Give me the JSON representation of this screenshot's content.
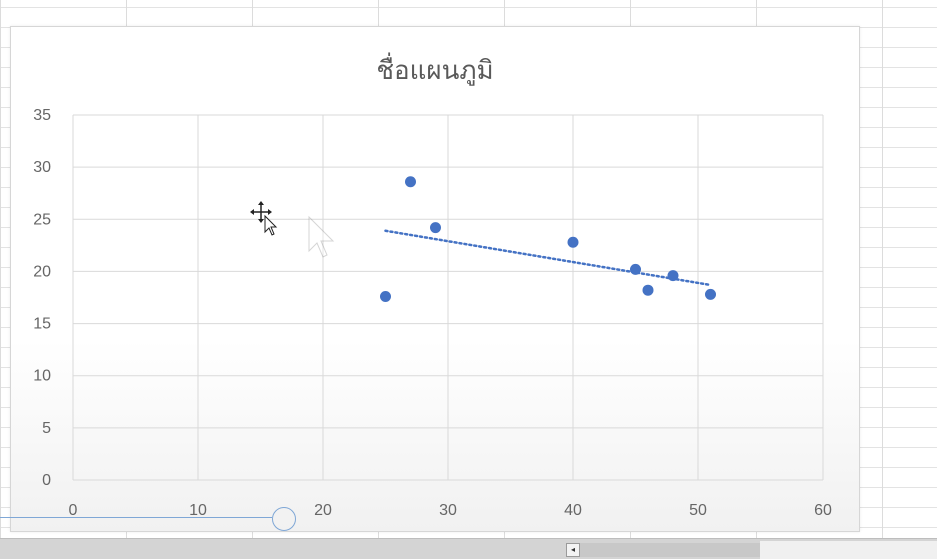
{
  "chart_data": {
    "type": "scatter",
    "title": "ชื่อแผนภูมิ",
    "xlabel": "",
    "ylabel": "",
    "xlim": [
      0,
      60
    ],
    "ylim": [
      0,
      35
    ],
    "x_ticks": [
      "0",
      "10",
      "20",
      "30",
      "40",
      "50",
      "60"
    ],
    "y_ticks": [
      "0",
      "5",
      "10",
      "15",
      "20",
      "25",
      "30",
      "35"
    ],
    "grid": true,
    "legend": "none",
    "series": [
      {
        "x": [
          25,
          27,
          29,
          40,
          45,
          46,
          48,
          51
        ],
        "y": [
          17.6,
          28.6,
          24.2,
          22.8,
          20.2,
          18.2,
          19.6,
          17.8
        ],
        "color": "#4472c4"
      }
    ],
    "trendline": {
      "type": "linear",
      "x_range": [
        25,
        51
      ],
      "y_range": [
        23.9,
        18.7
      ],
      "color": "#4472c4",
      "style": "dotted"
    }
  },
  "cursors": {
    "move_icon": "move-cursor-icon",
    "pointer_icon": "arrow-cursor-icon"
  },
  "ui": {
    "accent": "#4472c4",
    "scroll_left_glyph": "◂"
  }
}
